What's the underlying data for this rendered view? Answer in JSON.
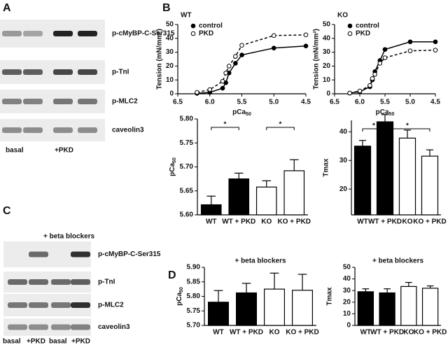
{
  "panels": {
    "A": {
      "letter": "A",
      "rows": [
        "p-cMyBP-C-Ser315",
        "p-TnI",
        "p-MLC2",
        "caveolin3"
      ],
      "lanes": [
        "basal",
        "+PKD"
      ]
    },
    "B": {
      "letter": "B"
    },
    "C": {
      "letter": "C",
      "title": "+ beta blockers",
      "rows": [
        "p-cMyBP-C-Ser315",
        "p-TnI",
        "p-MLC2",
        "caveolin3"
      ],
      "lanes": [
        "basal",
        "+PKD",
        "basal",
        "+PKD"
      ]
    },
    "D": {
      "letter": "D"
    }
  },
  "chart_data": [
    {
      "type": "line",
      "title": "WT",
      "ylabel": "Tension (mN/mm²)",
      "xlabel": {
        "text": "pCa",
        "sub": "50"
      },
      "x": [
        6.2,
        6.0,
        5.8,
        5.75,
        5.7,
        5.6,
        5.5,
        5.0,
        4.5
      ],
      "series": [
        {
          "name": "control",
          "color": "#000000",
          "marker": "filled",
          "dashed": false,
          "values": [
            0.3,
            1,
            4,
            8,
            15,
            22,
            28,
            33,
            34.5
          ]
        },
        {
          "name": "PKD",
          "color": "#000000",
          "marker": "open",
          "dashed": true,
          "values": [
            1,
            3,
            9,
            15,
            20,
            27,
            35,
            42,
            42.5
          ]
        }
      ],
      "xlim": [
        6.5,
        4.5
      ],
      "xticks": [
        6.5,
        {
          "value": 6,
          "label": "6.0"
        },
        5.5,
        {
          "value": 5,
          "label": "5.0"
        },
        4.5
      ],
      "ylim": [
        0,
        50
      ],
      "yticks": [
        0,
        10,
        20,
        30,
        40,
        50
      ]
    },
    {
      "type": "line",
      "title": "KO",
      "ylabel": "Tension (mN/mm²)",
      "xlabel": {
        "text": "pCa",
        "sub": "50"
      },
      "x": [
        6.2,
        6.0,
        5.8,
        5.75,
        5.7,
        5.6,
        5.5,
        5.0,
        4.5
      ],
      "series": [
        {
          "name": "control",
          "color": "#000000",
          "marker": "filled",
          "dashed": false,
          "values": [
            0.5,
            1.5,
            5,
            10,
            16,
            24,
            32,
            37.5,
            37.5
          ]
        },
        {
          "name": "PKD",
          "color": "#000000",
          "marker": "open",
          "dashed": true,
          "values": [
            0.5,
            2,
            6,
            11,
            14,
            22,
            26,
            31,
            31.5
          ]
        }
      ],
      "xlim": [
        6.5,
        4.5
      ],
      "xticks": [
        6.5,
        {
          "value": 6,
          "label": "6.0"
        },
        5.5,
        {
          "value": 5,
          "label": "5.0"
        },
        4.5
      ],
      "ylim": [
        0,
        50
      ],
      "yticks": [
        0,
        10,
        20,
        30,
        40,
        50
      ]
    },
    {
      "type": "bar",
      "ylabel": {
        "text": "pCa",
        "sub": "50"
      },
      "categories": [
        "WT",
        "WT + PKD",
        "KO",
        "KO + PKD"
      ],
      "values": [
        5.621,
        5.675,
        5.658,
        5.692
      ],
      "errors": [
        0.018,
        0.012,
        0.013,
        0.023
      ],
      "colors": [
        "#000000",
        "#000000",
        "#ffffff",
        "#ffffff"
      ],
      "ylim": [
        5.6,
        5.8
      ],
      "yticks": [
        {
          "value": 5.6,
          "label": "5.60"
        },
        5.65,
        {
          "value": 5.7,
          "label": "5.70"
        },
        5.75,
        {
          "value": 5.8,
          "label": "5.80"
        }
      ],
      "annotations": [
        {
          "text": "*",
          "between": [
            "WT",
            "WT + PKD"
          ]
        },
        {
          "text": "*",
          "between": [
            "KO",
            "KO + PKD"
          ]
        }
      ]
    },
    {
      "type": "bar",
      "ylabel": "Tmax",
      "categories": [
        "WT",
        "WT + PKD",
        "KO",
        "KO + PKD"
      ],
      "values": [
        35,
        43.5,
        37.8,
        31.5
      ],
      "errors": [
        2,
        2.5,
        2.8,
        2.2
      ],
      "colors": [
        "#000000",
        "#000000",
        "#ffffff",
        "#ffffff"
      ],
      "ylim": [
        11,
        44
      ],
      "yticks": [
        20,
        30,
        40
      ],
      "annotations": [
        {
          "text": "*",
          "between": [
            "WT",
            "WT + PKD"
          ]
        },
        {
          "text": "*",
          "between": [
            "WT + PKD",
            "KO + PKD"
          ]
        }
      ]
    },
    {
      "type": "bar",
      "title": "+ beta blockers",
      "ylabel": {
        "text": "pCa",
        "sub": "50"
      },
      "categories": [
        "WT",
        "WT + PKD",
        "KO",
        "KO + PKD"
      ],
      "values": [
        5.78,
        5.812,
        5.825,
        5.821
      ],
      "errors": [
        0.04,
        0.033,
        0.055,
        0.055
      ],
      "colors": [
        "#000000",
        "#000000",
        "#ffffff",
        "#ffffff"
      ],
      "ylim": [
        5.7,
        5.9
      ],
      "yticks": [
        {
          "value": 5.7,
          "label": "5.70"
        },
        5.75,
        {
          "value": 5.8,
          "label": "5.80"
        },
        5.85,
        {
          "value": 5.9,
          "label": "5.90"
        }
      ]
    },
    {
      "type": "bar",
      "title": "+ beta blockers",
      "ylabel": "Tmax",
      "categories": [
        "WT",
        "WT + PKD",
        "KO",
        "KO + PKD"
      ],
      "values": [
        29,
        28,
        33.5,
        32
      ],
      "errors": [
        2.5,
        3.5,
        3.5,
        2
      ],
      "colors": [
        "#000000",
        "#000000",
        "#ffffff",
        "#ffffff"
      ],
      "ylim": [
        0,
        50
      ],
      "yticks": [
        0,
        10,
        20,
        30,
        40,
        50
      ]
    }
  ]
}
